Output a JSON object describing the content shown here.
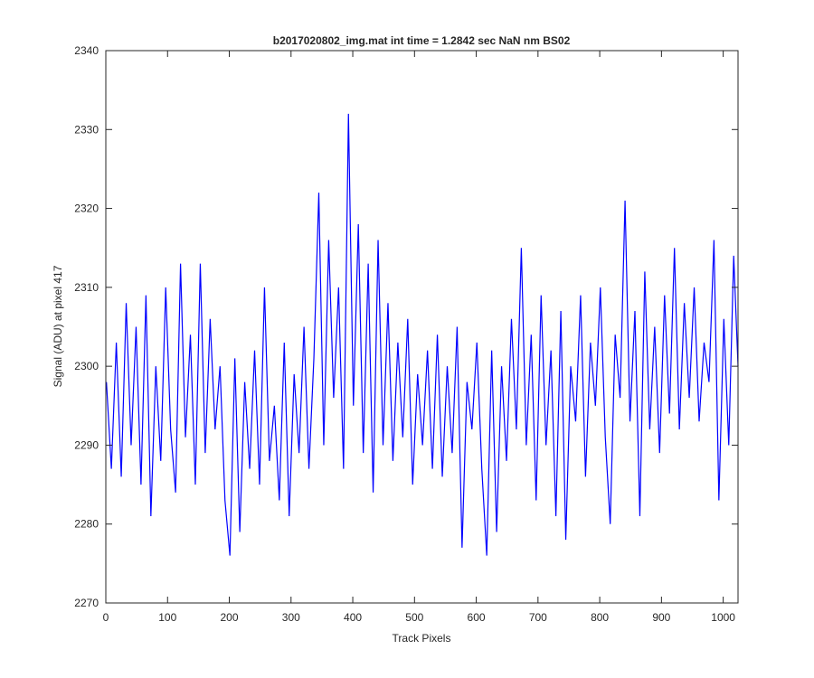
{
  "chart_data": {
    "type": "line",
    "title": "b2017020802_img.mat int time = 1.2842 sec  NaN nm BS02",
    "xlabel": "Track Pixels",
    "ylabel": "Signal (ADU) at pixel 417",
    "xlim": [
      0,
      1024
    ],
    "xticks": [
      0,
      100,
      200,
      300,
      400,
      500,
      600,
      700,
      800,
      900,
      1000
    ],
    "ylim": [
      2270,
      2340
    ],
    "yticks": [
      2270,
      2280,
      2290,
      2300,
      2310,
      2320,
      2330,
      2340
    ],
    "grid": false,
    "series": [
      {
        "color": "#0000ff",
        "x": [
          1,
          9,
          17,
          25,
          33,
          41,
          49,
          57,
          65,
          73,
          81,
          89,
          97,
          105,
          113,
          121,
          129,
          137,
          145,
          153,
          161,
          169,
          177,
          185,
          193,
          201,
          209,
          217,
          225,
          233,
          241,
          249,
          257,
          265,
          273,
          281,
          289,
          297,
          305,
          313,
          321,
          329,
          337,
          345,
          353,
          361,
          369,
          377,
          385,
          393,
          401,
          409,
          417,
          425,
          433,
          441,
          449,
          457,
          465,
          473,
          481,
          489,
          497,
          505,
          513,
          521,
          529,
          537,
          545,
          553,
          561,
          569,
          577,
          585,
          593,
          601,
          609,
          617,
          625,
          633,
          641,
          649,
          657,
          665,
          673,
          681,
          689,
          697,
          705,
          713,
          721,
          729,
          737,
          745,
          753,
          761,
          769,
          777,
          785,
          793,
          801,
          809,
          817,
          825,
          833,
          841,
          849,
          857,
          865,
          873,
          881,
          889,
          897,
          905,
          913,
          921,
          929,
          937,
          945,
          953,
          961,
          969,
          977,
          985,
          993,
          1001,
          1009,
          1017,
          1024
        ],
        "values": [
          2298,
          2287,
          2303,
          2286,
          2308,
          2290,
          2305,
          2285,
          2309,
          2281,
          2300,
          2288,
          2310,
          2292,
          2284,
          2313,
          2291,
          2304,
          2285,
          2313,
          2289,
          2306,
          2292,
          2300,
          2283,
          2276,
          2301,
          2279,
          2298,
          2287,
          2302,
          2285,
          2310,
          2288,
          2295,
          2283,
          2303,
          2281,
          2299,
          2289,
          2305,
          2287,
          2301,
          2322,
          2290,
          2316,
          2296,
          2310,
          2287,
          2332,
          2295,
          2318,
          2289,
          2313,
          2284,
          2316,
          2290,
          2308,
          2288,
          2303,
          2291,
          2306,
          2285,
          2299,
          2290,
          2302,
          2287,
          2304,
          2286,
          2300,
          2289,
          2305,
          2277,
          2298,
          2292,
          2303,
          2287,
          2276,
          2302,
          2279,
          2300,
          2288,
          2306,
          2292,
          2315,
          2290,
          2304,
          2283,
          2309,
          2290,
          2302,
          2281,
          2307,
          2278,
          2300,
          2293,
          2309,
          2286,
          2303,
          2295,
          2310,
          2291,
          2280,
          2304,
          2296,
          2321,
          2293,
          2307,
          2281,
          2312,
          2292,
          2305,
          2289,
          2309,
          2294,
          2315,
          2292,
          2308,
          2296,
          2310,
          2293,
          2303,
          2298,
          2316,
          2283,
          2306,
          2290,
          2314,
          2300
        ]
      }
    ]
  }
}
